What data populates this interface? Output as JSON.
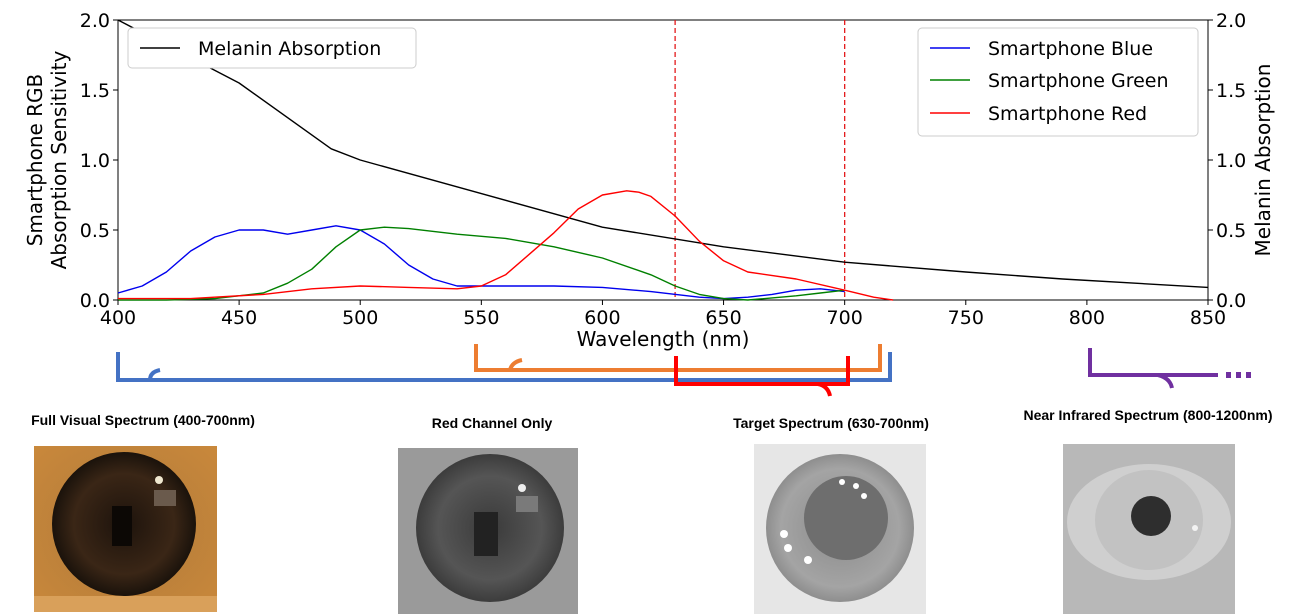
{
  "chart_data": {
    "type": "line",
    "xlabel": "Wavelength (nm)",
    "ylabel_left": [
      "Smartphone RGB",
      "Absorption Sensitivity"
    ],
    "ylabel_right": "Melanin Absorption",
    "xlim": [
      400,
      850
    ],
    "ylim_left": [
      0,
      2.0
    ],
    "ylim_right": [
      0,
      2.0
    ],
    "x_ticks": [
      "400",
      "450",
      "500",
      "550",
      "600",
      "650",
      "700",
      "750",
      "800",
      "850"
    ],
    "y_ticks_left": [
      "0.0",
      "0.5",
      "1.0",
      "1.5",
      "2.0"
    ],
    "y_ticks_right": [
      "0.0",
      "0.5",
      "1.0",
      "1.5",
      "2.0"
    ],
    "reference_lines": [
      {
        "x": 630,
        "color": "#e41a1c",
        "style": "dashed"
      },
      {
        "x": 700,
        "color": "#e41a1c",
        "style": "dashed"
      }
    ],
    "legend_left": {
      "position": "top-left",
      "entries": [
        "Melanin Absorption"
      ]
    },
    "legend_right": {
      "position": "top-right",
      "entries": [
        "Smartphone Blue",
        "Smartphone Green",
        "Smartphone Red"
      ]
    },
    "series": [
      {
        "name": "Melanin Absorption",
        "axis": "right",
        "color": "#000000",
        "x": [
          400,
          450,
          488,
          500,
          550,
          600,
          650,
          700,
          750,
          790,
          850
        ],
        "y": [
          2.0,
          1.55,
          1.08,
          1.0,
          0.76,
          0.52,
          0.38,
          0.27,
          0.2,
          0.15,
          0.09
        ]
      },
      {
        "name": "Smartphone Blue",
        "axis": "left",
        "color": "#0000ee",
        "x": [
          400,
          410,
          420,
          430,
          440,
          450,
          460,
          470,
          480,
          490,
          500,
          510,
          520,
          530,
          540,
          560,
          580,
          600,
          620,
          640,
          650,
          660,
          670,
          680,
          690,
          700
        ],
        "y": [
          0.05,
          0.1,
          0.2,
          0.35,
          0.45,
          0.5,
          0.5,
          0.47,
          0.5,
          0.53,
          0.5,
          0.4,
          0.25,
          0.15,
          0.1,
          0.1,
          0.1,
          0.09,
          0.06,
          0.02,
          0.01,
          0.02,
          0.04,
          0.07,
          0.08,
          0.06
        ]
      },
      {
        "name": "Smartphone Green",
        "axis": "left",
        "color": "#008000",
        "x": [
          400,
          420,
          440,
          460,
          470,
          480,
          490,
          500,
          510,
          520,
          540,
          560,
          580,
          600,
          620,
          630,
          640,
          650,
          660,
          680,
          690,
          700
        ],
        "y": [
          0.0,
          0.0,
          0.01,
          0.05,
          0.12,
          0.22,
          0.38,
          0.5,
          0.52,
          0.51,
          0.47,
          0.44,
          0.38,
          0.3,
          0.18,
          0.1,
          0.04,
          0.01,
          0.0,
          0.03,
          0.05,
          0.07
        ]
      },
      {
        "name": "Smartphone Red",
        "axis": "left",
        "color": "#ff0000",
        "x": [
          400,
          430,
          460,
          480,
          500,
          520,
          540,
          550,
          560,
          570,
          580,
          590,
          600,
          610,
          615,
          620,
          630,
          640,
          650,
          660,
          680,
          700,
          712,
          720
        ],
        "y": [
          0.01,
          0.01,
          0.04,
          0.08,
          0.1,
          0.09,
          0.08,
          0.1,
          0.18,
          0.33,
          0.48,
          0.65,
          0.75,
          0.78,
          0.77,
          0.74,
          0.6,
          0.42,
          0.28,
          0.2,
          0.15,
          0.07,
          0.02,
          0.0
        ]
      }
    ]
  },
  "bands": [
    {
      "id": "full",
      "label": "Full Visual Spectrum (400-700nm)",
      "color": "#4472c4"
    },
    {
      "id": "redch",
      "label": "Red Channel Only",
      "color": "#ed7d31"
    },
    {
      "id": "target",
      "label": "Target Spectrum (630-700nm)",
      "color": "#ff0000"
    },
    {
      "id": "nir",
      "label": "Near Infrared Spectrum (800-1200nm)",
      "color": "#7030a0"
    }
  ]
}
